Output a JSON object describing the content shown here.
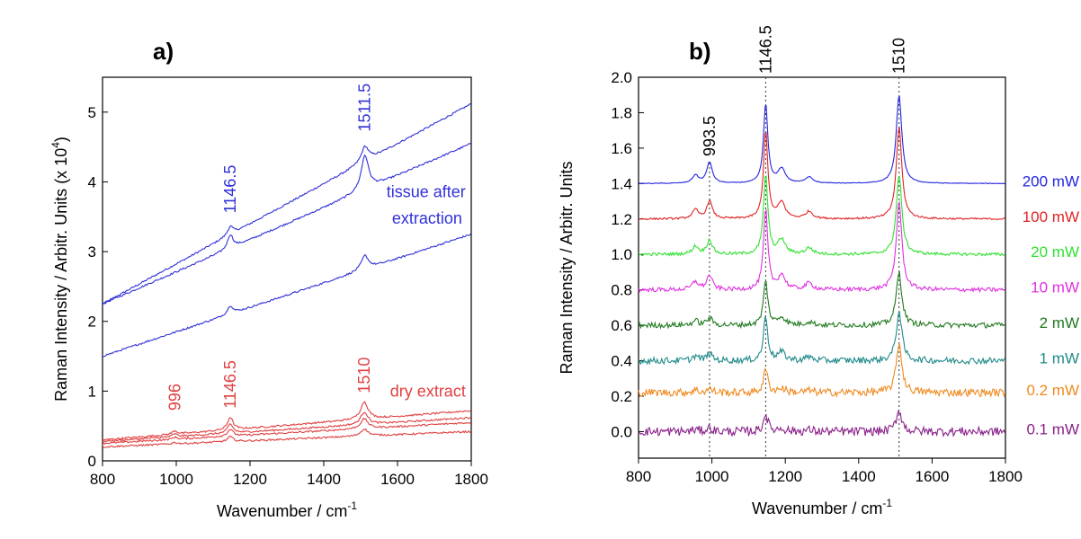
{
  "chart_data": [
    {
      "type": "line",
      "panel_label": "a)",
      "xlabel": "Wavenumber / cm",
      "xlabel_sup": "-1",
      "ylabel": "Raman Intensity / Arbitr. Units (x 10",
      "ylabel_sup": "4",
      "ylabel_end": ")",
      "xlim": [
        800,
        1800
      ],
      "ylim": [
        0,
        5.5
      ],
      "xticks": [
        "800",
        "1000",
        "1200",
        "1400",
        "1600",
        "1800"
      ],
      "yticks": [
        "0",
        "1",
        "2",
        "3",
        "4",
        "5"
      ],
      "grid": false,
      "series": [
        {
          "group": "tissue after extraction",
          "color": "#3030d8",
          "base": [
            2.25,
            5.12
          ],
          "peaks": [
            [
              1146.5,
              0.12,
              9
            ],
            [
              1511.5,
              0.22,
              12
            ]
          ]
        },
        {
          "group": "tissue after extraction",
          "color": "#3030d8",
          "base": [
            2.25,
            4.55
          ],
          "peaks": [
            [
              1146.5,
              0.2,
              9
            ],
            [
              1511.5,
              0.5,
              12
            ]
          ]
        },
        {
          "group": "tissue after extraction",
          "color": "#3030d8",
          "base": [
            1.5,
            3.25
          ],
          "peaks": [
            [
              1146.5,
              0.12,
              9
            ],
            [
              1511.5,
              0.2,
              12
            ]
          ]
        },
        {
          "group": "dry extract",
          "color": "#e04040",
          "base": [
            0.3,
            0.72
          ],
          "peaks": [
            [
              996,
              0.05,
              8
            ],
            [
              1146.5,
              0.18,
              9
            ],
            [
              1510,
              0.25,
              12
            ]
          ]
        },
        {
          "group": "dry extract",
          "color": "#e04040",
          "base": [
            0.28,
            0.62
          ],
          "peaks": [
            [
              996,
              0.04,
              8
            ],
            [
              1146.5,
              0.13,
              9
            ],
            [
              1510,
              0.18,
              12
            ]
          ]
        },
        {
          "group": "dry extract",
          "color": "#e04040",
          "base": [
            0.25,
            0.55
          ],
          "peaks": [
            [
              996,
              0.03,
              8
            ],
            [
              1146.5,
              0.1,
              9
            ],
            [
              1510,
              0.14,
              12
            ]
          ]
        },
        {
          "group": "dry extract",
          "color": "#e04040",
          "base": [
            0.2,
            0.42
          ],
          "peaks": [
            [
              996,
              0.02,
              8
            ],
            [
              1146.5,
              0.07,
              9
            ],
            [
              1510,
              0.1,
              12
            ]
          ]
        }
      ],
      "annotations": [
        {
          "text": "1146.5",
          "x": 1146.5,
          "y": 3.55,
          "color": "#3030d8",
          "rotate": true
        },
        {
          "text": "1511.5",
          "x": 1511.5,
          "y": 4.72,
          "color": "#3030d8",
          "rotate": true
        },
        {
          "text": "996",
          "x": 996,
          "y": 0.72,
          "color": "#e04040",
          "rotate": true
        },
        {
          "text": "1146.5",
          "x": 1146.5,
          "y": 0.75,
          "color": "#e04040",
          "rotate": true
        },
        {
          "text": "1510",
          "x": 1510,
          "y": 0.97,
          "color": "#e04040",
          "rotate": true
        },
        {
          "text": "tissue after",
          "x": 1570,
          "y": 3.78,
          "color": "#3030d8",
          "rotate": false
        },
        {
          "text": "extraction",
          "x": 1585,
          "y": 3.4,
          "color": "#3030d8",
          "rotate": false
        },
        {
          "text": "dry extract",
          "x": 1580,
          "y": 0.92,
          "color": "#e04040",
          "rotate": false
        }
      ]
    },
    {
      "type": "line",
      "panel_label": "b)",
      "xlabel": "Wavenumber / cm",
      "xlabel_sup": "-1",
      "ylabel": "Raman Intensity / Arbitr. Units",
      "xlim": [
        800,
        1800
      ],
      "ylim": [
        -0.15,
        2.0
      ],
      "xticks": [
        "800",
        "1000",
        "1200",
        "1400",
        "1600",
        "1800"
      ],
      "yticks": [
        "0.0",
        "0.2",
        "0.4",
        "0.6",
        "0.8",
        "1.0",
        "1.2",
        "1.4",
        "1.6",
        "1.8",
        "2.0"
      ],
      "grid": false,
      "reference_lines": [
        {
          "x": 993.5,
          "label": "993.5"
        },
        {
          "x": 1146.5,
          "label": "1146.5"
        },
        {
          "x": 1510,
          "label": "1510"
        }
      ],
      "series": [
        {
          "name": "200 mW",
          "color": "#2424e0",
          "baseline": 1.4,
          "peaks": [
            [
              993.5,
              0.12
            ],
            [
              1146.5,
              0.45
            ],
            [
              1510,
              0.5
            ]
          ]
        },
        {
          "name": "100 mW",
          "color": "#e02424",
          "baseline": 1.2,
          "peaks": [
            [
              993.5,
              0.1
            ],
            [
              1146.5,
              0.5
            ],
            [
              1510,
              0.52
            ]
          ]
        },
        {
          "name": "20 mW",
          "color": "#30e030",
          "baseline": 1.0,
          "peaks": [
            [
              993.5,
              0.08
            ],
            [
              1146.5,
              0.45
            ],
            [
              1510,
              0.45
            ]
          ]
        },
        {
          "name": "10 mW",
          "color": "#e030e0",
          "baseline": 0.8,
          "peaks": [
            [
              993.5,
              0.08
            ],
            [
              1146.5,
              0.45
            ],
            [
              1510,
              0.5
            ]
          ]
        },
        {
          "name": "2 mW",
          "color": "#207a20",
          "baseline": 0.6,
          "peaks": [
            [
              993.5,
              0.04
            ],
            [
              1146.5,
              0.25
            ],
            [
              1510,
              0.3
            ]
          ]
        },
        {
          "name": "1 mW",
          "color": "#208a8a",
          "baseline": 0.4,
          "peaks": [
            [
              993.5,
              0.04
            ],
            [
              1146.5,
              0.25
            ],
            [
              1510,
              0.28
            ]
          ]
        },
        {
          "name": "0.2 mW",
          "color": "#f08a20",
          "baseline": 0.22,
          "peaks": [
            [
              993.5,
              0.02
            ],
            [
              1146.5,
              0.13
            ],
            [
              1510,
              0.28
            ]
          ]
        },
        {
          "name": "0.1 mW",
          "color": "#8a208a",
          "baseline": 0.0,
          "peaks": [
            [
              993.5,
              0.02
            ],
            [
              1146.5,
              0.1
            ],
            [
              1510,
              0.12
            ]
          ]
        }
      ]
    }
  ]
}
